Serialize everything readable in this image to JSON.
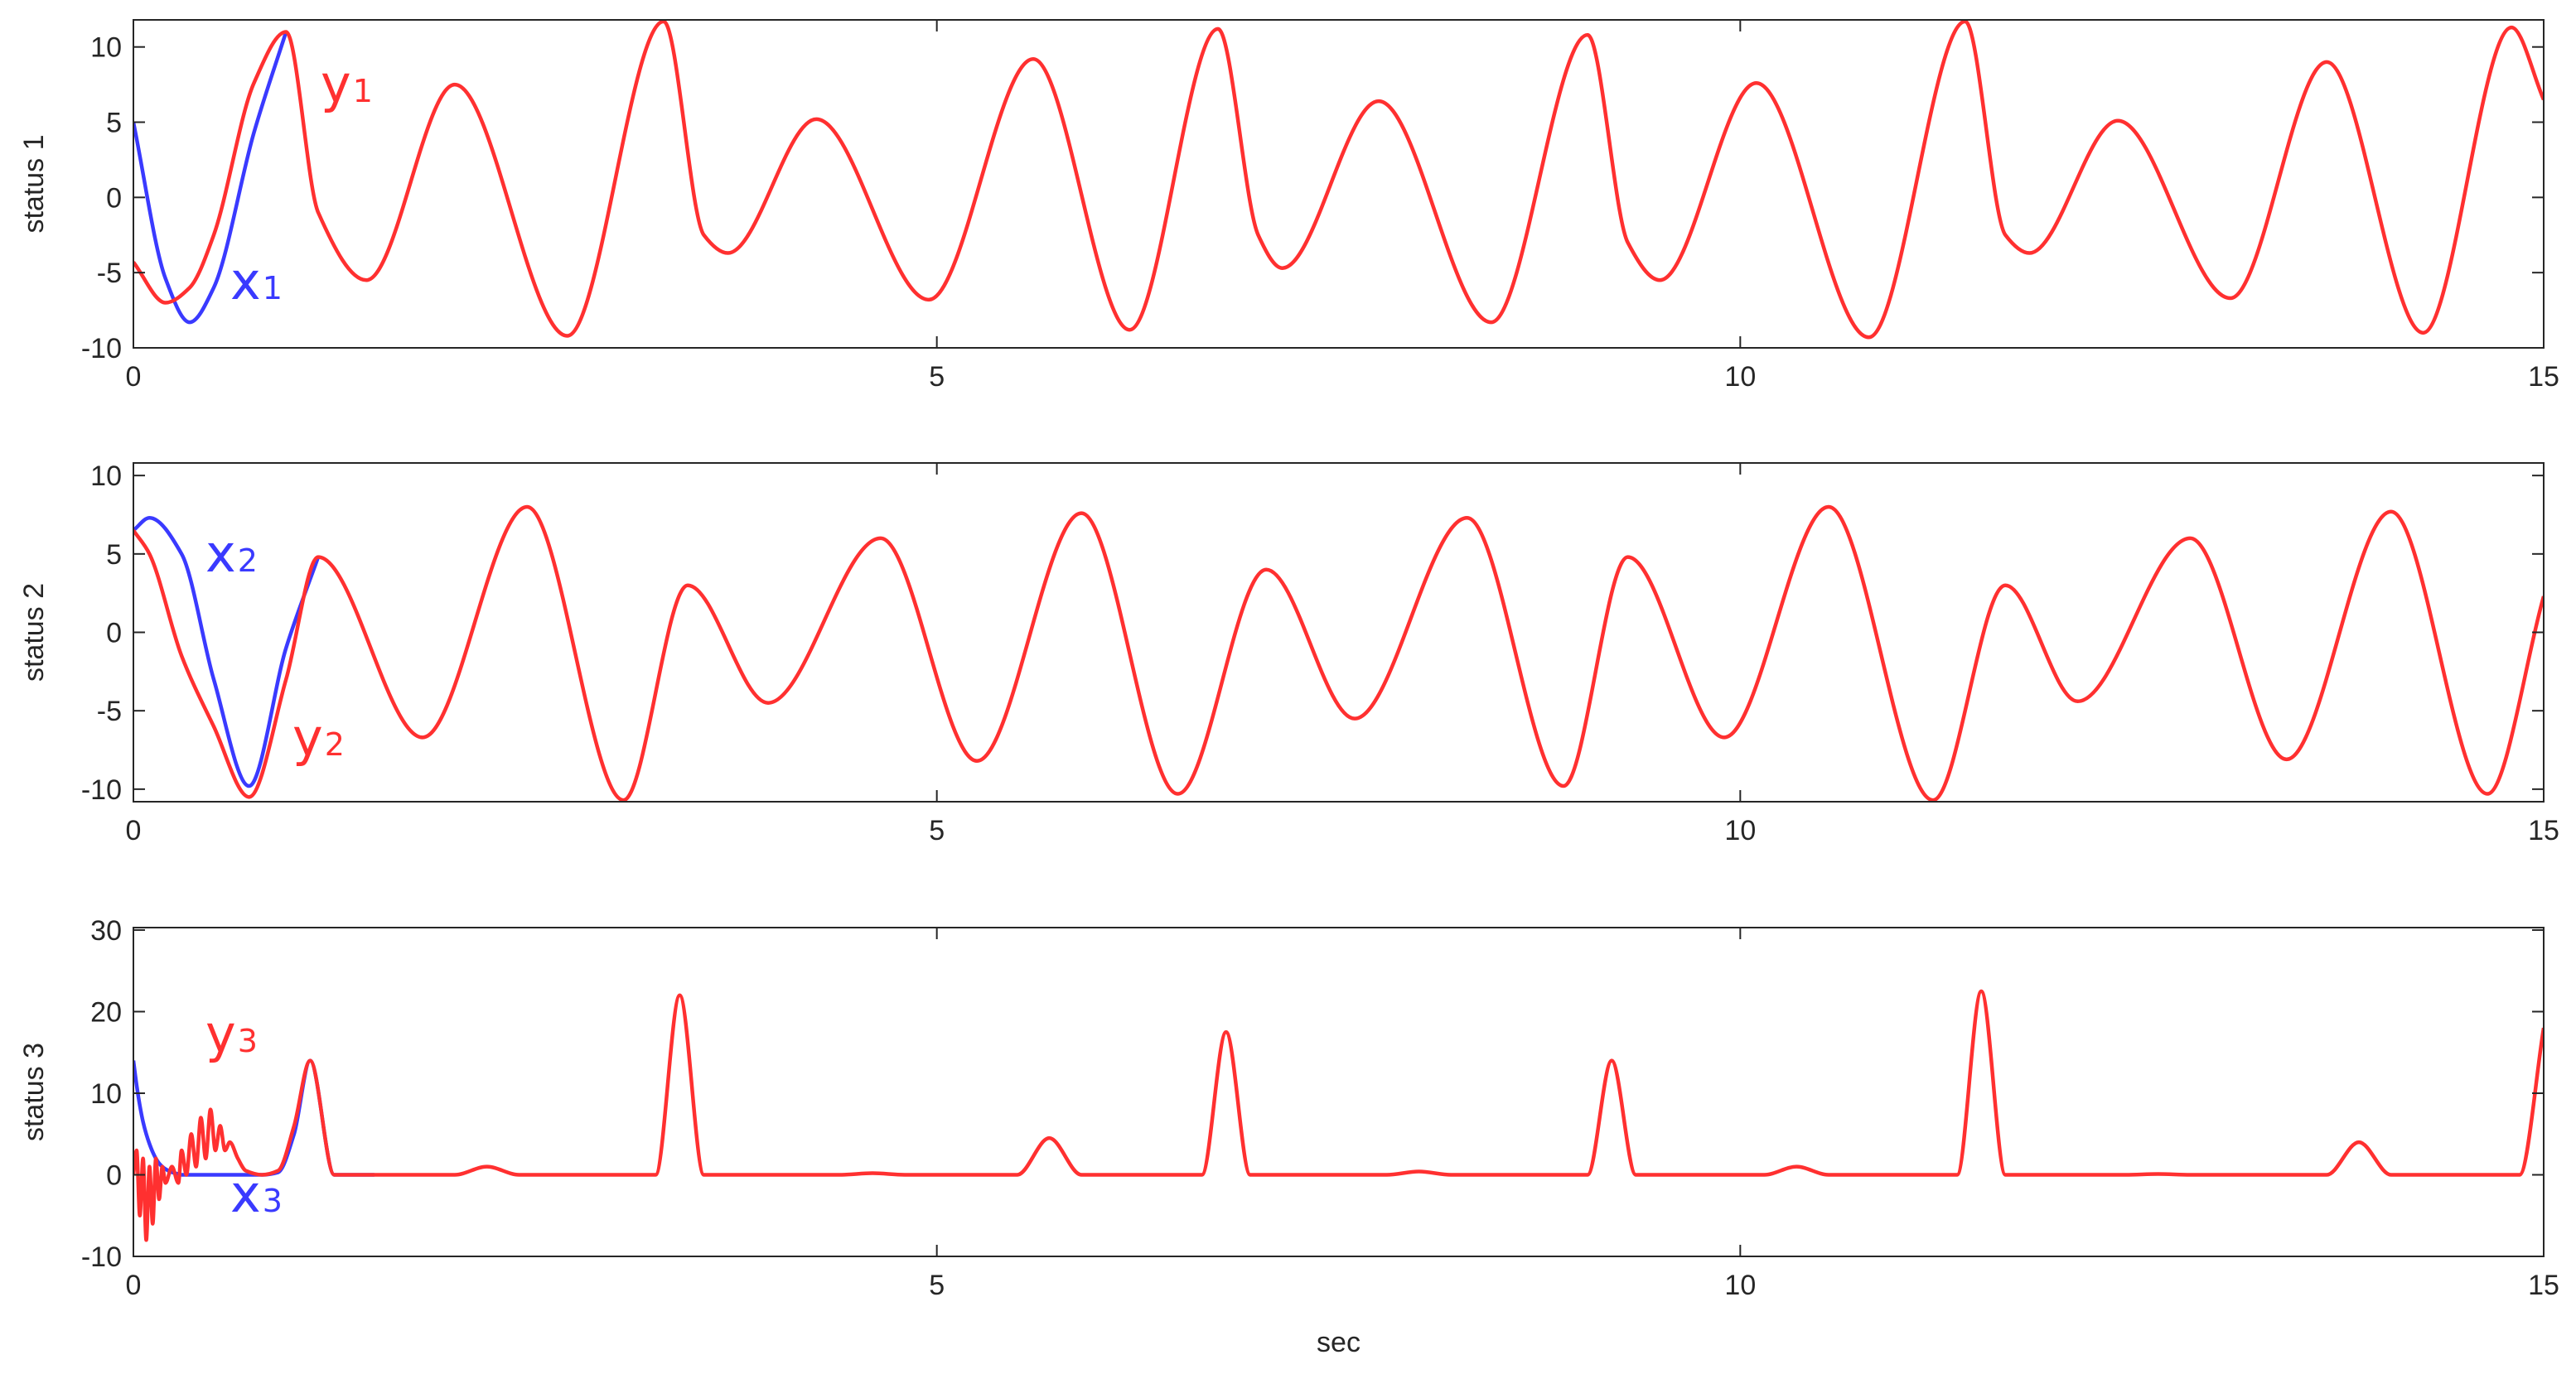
{
  "chart_data": [
    {
      "type": "line",
      "ylabel": "status 1",
      "xlim": [
        0,
        15
      ],
      "xticks": [
        0,
        5,
        10,
        15
      ],
      "ylim": [
        -10,
        11.8
      ],
      "yticks": [
        -10,
        -5,
        0,
        5,
        10
      ],
      "x": [
        0,
        0.2,
        0.35,
        0.5,
        0.75,
        0.95,
        1.15,
        1.45,
        2.0,
        2.7,
        3.3,
        3.55,
        3.7,
        4.25,
        4.95,
        5.6,
        6.2,
        6.75,
        7.0,
        7.15,
        7.75,
        8.45,
        9.05,
        9.3,
        9.5,
        10.1,
        10.8,
        11.4,
        11.65,
        11.8,
        12.35,
        13.05,
        13.65,
        14.25,
        14.8,
        15
      ],
      "series": [
        {
          "name": "x",
          "subscript": "1",
          "color": "#3a3aff",
          "values": [
            5,
            -5.4,
            -8.3,
            -6,
            4.3,
            11,
            null,
            null,
            null,
            null,
            null,
            null,
            null,
            null,
            null,
            null,
            null,
            null,
            null,
            null,
            null,
            null,
            null,
            null,
            null,
            null,
            null,
            null,
            null,
            null,
            null,
            null,
            null,
            null,
            null,
            null
          ]
        },
        {
          "name": "y",
          "subscript": "1",
          "color": "#ff3030",
          "values": [
            -4.3,
            -7,
            -6,
            -2.5,
            7.6,
            11,
            -1,
            -5.5,
            7.5,
            -9.2,
            11.7,
            -2.5,
            -3.7,
            5.2,
            -6.8,
            9.2,
            -8.8,
            11.2,
            -2.5,
            -4.7,
            6.4,
            -8.3,
            10.8,
            -3,
            -5.5,
            7.6,
            -9.3,
            11.7,
            -2.5,
            -3.7,
            5.1,
            -6.7,
            9,
            -9,
            11.3,
            6.5
          ]
        }
      ]
    },
    {
      "type": "line",
      "ylabel": "status 2",
      "xlim": [
        0,
        15
      ],
      "xticks": [
        0,
        5,
        10,
        15
      ],
      "ylim": [
        -10.8,
        10.8
      ],
      "yticks": [
        -10,
        -5,
        0,
        5,
        10
      ],
      "x": [
        0,
        0.1,
        0.3,
        0.5,
        0.72,
        0.95,
        1.15,
        1.8,
        2.45,
        3.05,
        3.45,
        3.95,
        4.65,
        5.25,
        5.9,
        6.5,
        7.05,
        7.6,
        8.3,
        8.9,
        9.3,
        9.9,
        10.55,
        11.2,
        11.65,
        12.1,
        12.8,
        13.4,
        14.05,
        14.65,
        15
      ],
      "series": [
        {
          "name": "x",
          "subscript": "2",
          "color": "#3a3aff",
          "values": [
            6.5,
            7.3,
            5,
            -3,
            -9.8,
            -1,
            4.8,
            null,
            null,
            null,
            null,
            null,
            null,
            null,
            null,
            null,
            null,
            null,
            null,
            null,
            null,
            null,
            null,
            null,
            null,
            null,
            null,
            null,
            null,
            null,
            null
          ]
        },
        {
          "name": "y",
          "subscript": "2",
          "color": "#ff3030",
          "values": [
            6.5,
            5,
            -1.5,
            -6,
            -10.5,
            -3,
            4.8,
            -6.7,
            8,
            -10.7,
            3,
            -4.5,
            6,
            -8.2,
            7.6,
            -10.3,
            4,
            -5.5,
            7.3,
            -9.8,
            4.8,
            -6.7,
            8,
            -10.7,
            3,
            -4.4,
            6,
            -8.1,
            7.7,
            -10.3,
            2.3
          ]
        }
      ]
    },
    {
      "type": "line",
      "ylabel": "status 3",
      "xlabel": "sec",
      "xlim": [
        0,
        15
      ],
      "xticks": [
        0,
        5,
        10,
        15
      ],
      "ylim": [
        -10,
        30.3
      ],
      "yticks": [
        -10,
        0,
        10,
        20,
        30
      ],
      "x": [
        0,
        0.02,
        0.04,
        0.06,
        0.08,
        0.1,
        0.12,
        0.14,
        0.16,
        0.18,
        0.2,
        0.24,
        0.28,
        0.3,
        0.33,
        0.36,
        0.39,
        0.42,
        0.45,
        0.48,
        0.51,
        0.54,
        0.57,
        0.6,
        0.65,
        0.7,
        0.8,
        0.9,
        1.0,
        1.1,
        1.25,
        1.5,
        2.0,
        2.2,
        2.4,
        3.25,
        3.4,
        3.55,
        4.4,
        4.6,
        4.8,
        5.5,
        5.7,
        5.9,
        6.65,
        6.8,
        6.95,
        7.8,
        8.0,
        8.2,
        9.05,
        9.2,
        9.35,
        10.15,
        10.35,
        10.55,
        11.35,
        11.5,
        11.65,
        12.4,
        12.6,
        12.8,
        13.65,
        13.85,
        14.05,
        14.85,
        15
      ],
      "series": [
        {
          "name": "x",
          "subscript": "3",
          "color": "#3a3aff",
          "values": [
            14,
            11,
            8.5,
            6.5,
            5,
            3.8,
            2.8,
            2,
            1.4,
            1,
            0.7,
            0.3,
            0.1,
            0,
            0,
            0,
            0,
            0,
            0,
            0,
            0,
            0,
            0,
            0,
            0,
            0,
            0,
            0.3,
            5,
            14,
            0,
            0,
            null,
            null,
            null,
            null,
            null,
            null,
            null,
            null,
            null,
            null,
            null,
            null,
            null,
            null,
            null,
            null,
            null,
            null,
            null,
            null,
            null,
            null,
            null,
            null,
            null,
            null,
            null,
            null,
            null,
            null,
            null,
            null,
            null,
            null,
            null
          ]
        },
        {
          "name": "y",
          "subscript": "3",
          "color": "#ff3030",
          "values": [
            0,
            3,
            -5,
            2,
            -8,
            1,
            -6,
            2,
            -3,
            1,
            -1,
            1,
            -1,
            3,
            0,
            5,
            1,
            7,
            2,
            8,
            3,
            6,
            3,
            4,
            2,
            0.5,
            0,
            0.5,
            6,
            14,
            0,
            0,
            0,
            1,
            0,
            0,
            22,
            0,
            0,
            0.2,
            0,
            0,
            4.5,
            0,
            0,
            17.5,
            0,
            0,
            0.4,
            0,
            0,
            14,
            0,
            0,
            1,
            0,
            0,
            22.5,
            0,
            0,
            0.1,
            0,
            0,
            4,
            0,
            0,
            18
          ]
        }
      ]
    }
  ]
}
